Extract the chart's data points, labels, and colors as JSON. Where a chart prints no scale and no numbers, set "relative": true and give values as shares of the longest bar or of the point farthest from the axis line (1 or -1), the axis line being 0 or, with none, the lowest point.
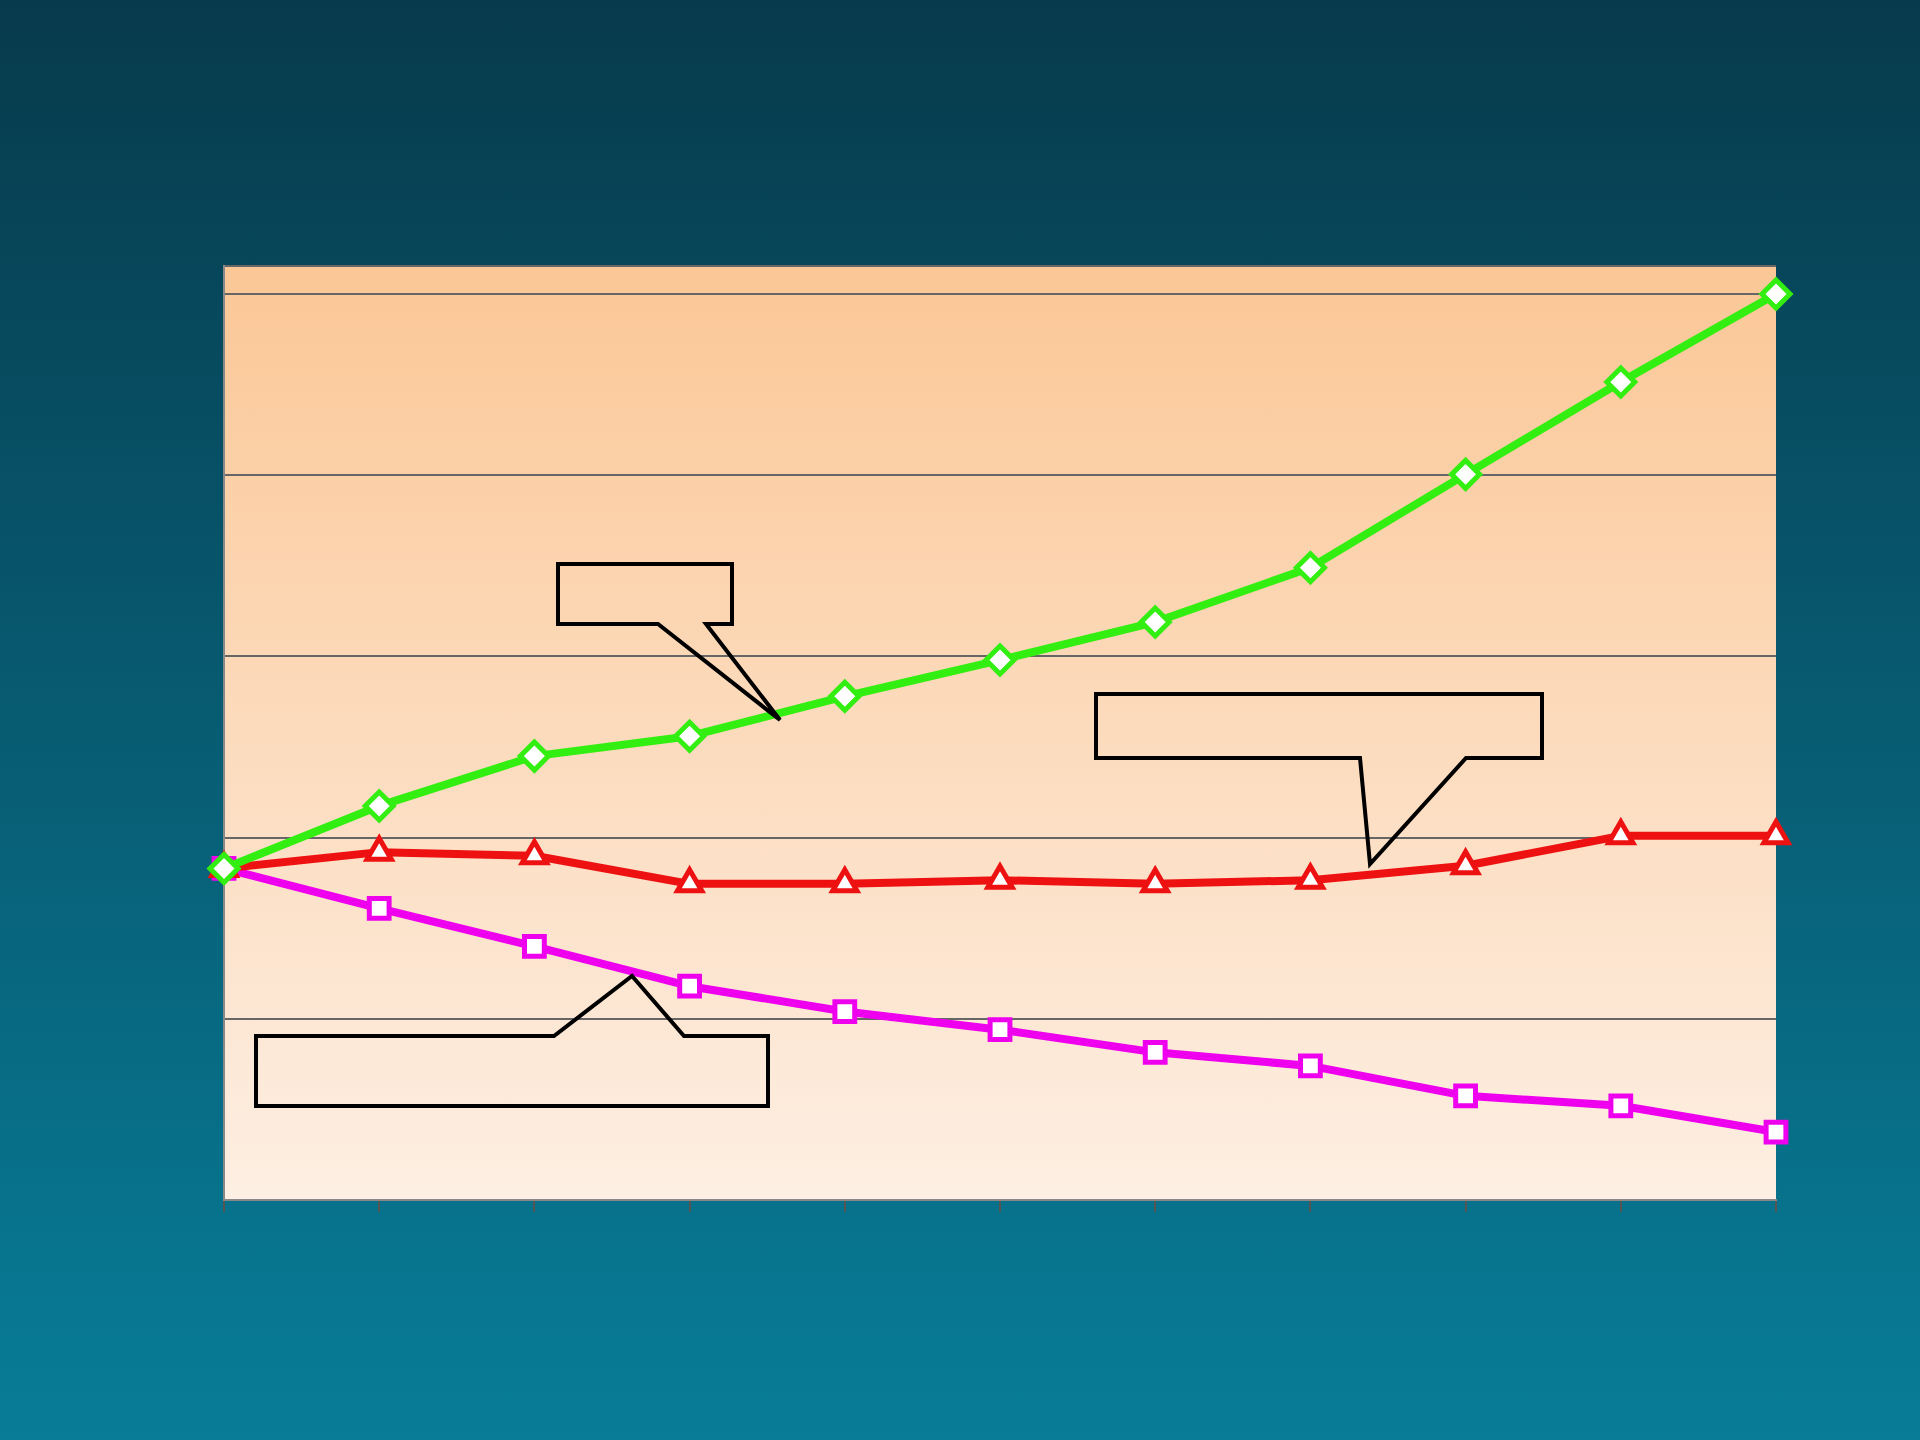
{
  "chart_data": {
    "type": "line",
    "relative": true,
    "categories": [
      null,
      null,
      null,
      null,
      null,
      null,
      null,
      null,
      null,
      null,
      null
    ],
    "grid": "y",
    "legend": false,
    "tick_labels": false,
    "series": [
      {
        "color": "#33ee11",
        "marker": "diamond",
        "values": [
          0.366,
          0.435,
          0.49,
          0.512,
          0.556,
          0.596,
          0.638,
          0.698,
          0.801,
          0.903,
          1
        ]
      },
      {
        "color": "#ee1111",
        "marker": "triangle",
        "values": [
          0.366,
          0.384,
          0.38,
          0.349,
          0.349,
          0.353,
          0.349,
          0.353,
          0.369,
          0.402,
          0.402
        ]
      },
      {
        "color": "#ee00ee",
        "marker": "square",
        "values": [
          0.366,
          0.322,
          0.28,
          0.236,
          0.208,
          0.188,
          0.163,
          0.148,
          0.115,
          0.104,
          0.075
        ]
      }
    ]
  }
}
